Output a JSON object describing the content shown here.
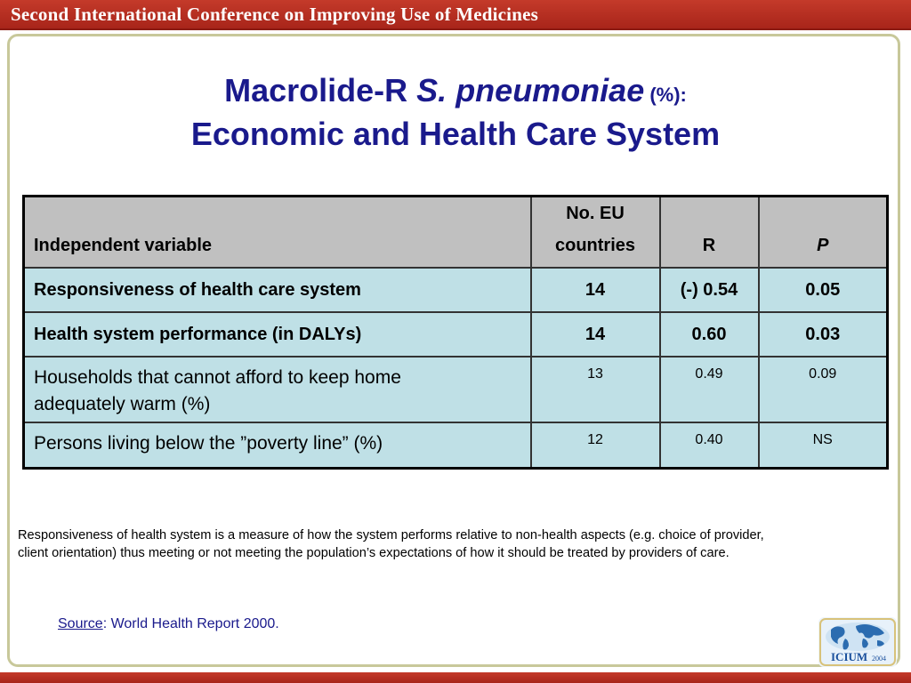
{
  "banner": {
    "text": "Second International Conference on Improving Use of Medicines"
  },
  "title": {
    "line1_part1": "Macrolide-R ",
    "line1_italic": "S. pneumoniae",
    "line1_small": " (%):",
    "line2": "Economic and Health Care System"
  },
  "table": {
    "headers": {
      "variable": "Independent variable",
      "countries_line1": "No. EU",
      "countries_line2": "countries",
      "r": "R",
      "p": "P"
    },
    "rows": [
      {
        "variable": "Responsiveness of health care system",
        "countries": "14",
        "r": "(-) 0.54",
        "p": "0.05"
      },
      {
        "variable": "Health system performance (in DALYs)",
        "countries": "14",
        "r": "0.60",
        "p": "0.03"
      },
      {
        "variable_line1": "Households that cannot afford to keep home",
        "variable_line2": "adequately warm (%)",
        "countries": "13",
        "r": "0.49",
        "p": "0.09"
      },
      {
        "variable": "Persons living below the ”poverty line” (%)",
        "countries": "12",
        "r": "0.40",
        "p": "NS"
      }
    ]
  },
  "note": {
    "line1": "Responsiveness of health system is a measure of how the system performs relative to non-health aspects (e.g. choice of provider,",
    "line2": "client orientation) thus meeting or not meeting the population’s expectations of how it should be treated by providers of care."
  },
  "source": {
    "link": "Source",
    "text": ": World Health Report 2000."
  },
  "logo": {
    "text": "ICIUM",
    "year": "2004",
    "icon": "globe-icon"
  },
  "colors": {
    "banner": "#b02f20",
    "title": "#1a1a8c",
    "header_bg": "#c0c0c0",
    "row_bg": "#bfe0e6",
    "frame": "#c8c89a"
  }
}
